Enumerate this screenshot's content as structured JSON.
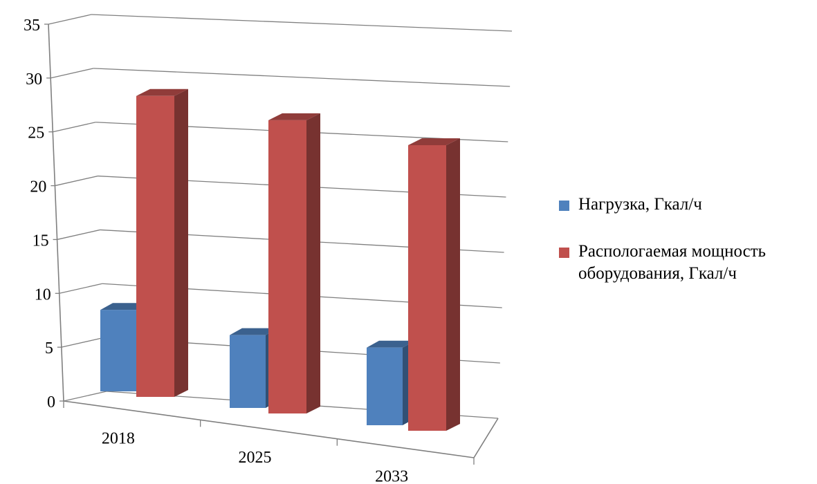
{
  "chart_data": {
    "type": "bar",
    "categories": [
      "2018",
      "2025",
      "2033"
    ],
    "series": [
      {
        "name": "Нагрузка, Гкал/ч",
        "values": [
          8.5,
          7.6,
          8.1
        ],
        "color": "#4f81bd"
      },
      {
        "name": "Распологаемая мощность оборудования, Гкал/ч",
        "values": [
          31.4,
          30.6,
          29.8
        ],
        "color": "#c0504d"
      }
    ],
    "y_ticks": [
      "0",
      "5",
      "10",
      "15",
      "20",
      "25",
      "30",
      "35"
    ],
    "ylim": [
      0,
      35
    ],
    "grid": true,
    "legend_position": "right",
    "perspective_3d": true
  }
}
